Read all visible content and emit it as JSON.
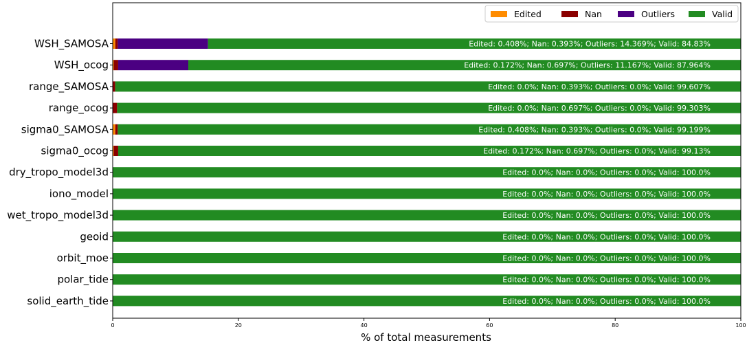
{
  "chart_data": {
    "type": "bar",
    "orientation": "horizontal",
    "stacked": true,
    "title": "",
    "xlabel": "% of total measurements",
    "ylabel": "",
    "xlim": [
      0,
      100
    ],
    "xticks": [
      0,
      20,
      40,
      60,
      80,
      100
    ],
    "grid": false,
    "legend_position": "top-right",
    "categories": [
      "WSH_SAMOSA",
      "WSH_ocog",
      "range_SAMOSA",
      "range_ocog",
      "sigma0_SAMOSA",
      "sigma0_ocog",
      "dry_tropo_model3d",
      "iono_model",
      "wet_tropo_model3d",
      "geoid",
      "orbit_moe",
      "polar_tide",
      "solid_earth_tide"
    ],
    "series": [
      {
        "name": "Edited",
        "color": "#ff8c00",
        "values": [
          0.408,
          0.172,
          0.0,
          0.0,
          0.408,
          0.172,
          0.0,
          0.0,
          0.0,
          0.0,
          0.0,
          0.0,
          0.0
        ]
      },
      {
        "name": "Nan",
        "color": "#8b0000",
        "values": [
          0.393,
          0.697,
          0.393,
          0.697,
          0.393,
          0.697,
          0.0,
          0.0,
          0.0,
          0.0,
          0.0,
          0.0,
          0.0
        ]
      },
      {
        "name": "Outliers",
        "color": "#4b0082",
        "values": [
          14.369,
          11.167,
          0.0,
          0.0,
          0.0,
          0.0,
          0.0,
          0.0,
          0.0,
          0.0,
          0.0,
          0.0,
          0.0
        ]
      },
      {
        "name": "Valid",
        "color": "#228b22",
        "values": [
          84.83,
          87.964,
          99.607,
          99.303,
          99.199,
          99.13,
          100.0,
          100.0,
          100.0,
          100.0,
          100.0,
          100.0,
          100.0
        ]
      }
    ],
    "bar_labels": [
      "Edited: 0.408%; Nan: 0.393%; Outliers: 14.369%; Valid: 84.83%",
      "Edited: 0.172%; Nan: 0.697%; Outliers: 11.167%; Valid: 87.964%",
      "Edited: 0.0%; Nan: 0.393%; Outliers: 0.0%; Valid: 99.607%",
      "Edited: 0.0%; Nan: 0.697%; Outliers: 0.0%; Valid: 99.303%",
      "Edited: 0.408%; Nan: 0.393%; Outliers: 0.0%; Valid: 99.199%",
      "Edited: 0.172%; Nan: 0.697%; Outliers: 0.0%; Valid: 99.13%",
      "Edited: 0.0%; Nan: 0.0%; Outliers: 0.0%; Valid: 100.0%",
      "Edited: 0.0%; Nan: 0.0%; Outliers: 0.0%; Valid: 100.0%",
      "Edited: 0.0%; Nan: 0.0%; Outliers: 0.0%; Valid: 100.0%",
      "Edited: 0.0%; Nan: 0.0%; Outliers: 0.0%; Valid: 100.0%",
      "Edited: 0.0%; Nan: 0.0%; Outliers: 0.0%; Valid: 100.0%",
      "Edited: 0.0%; Nan: 0.0%; Outliers: 0.0%; Valid: 100.0%",
      "Edited: 0.0%; Nan: 0.0%; Outliers: 0.0%; Valid: 100.0%"
    ]
  }
}
